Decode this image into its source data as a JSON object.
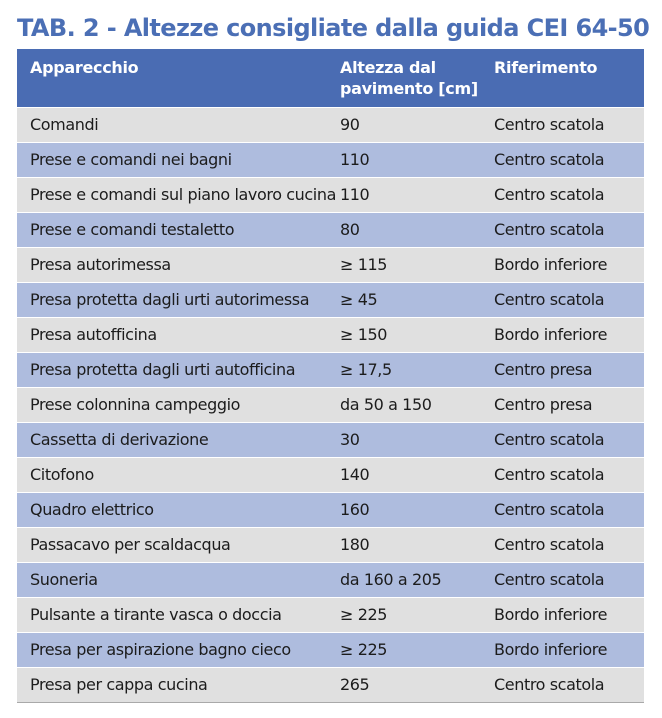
{
  "title": "TAB. 2 - Altezze consigliate dalla guida CEI 64-50",
  "columns": {
    "device": "Apparecchio",
    "height_line1": "Altezza dal",
    "height_line2": "pavimento [cm]",
    "reference": "Riferimento"
  },
  "rows": [
    {
      "device": "Comandi",
      "height": "90",
      "reference": "Centro scatola"
    },
    {
      "device": "Prese e comandi nei bagni",
      "height": "110",
      "reference": "Centro scatola"
    },
    {
      "device": "Prese e comandi sul piano lavoro cucina",
      "height": "110",
      "reference": "Centro scatola"
    },
    {
      "device": "Prese e comandi testaletto",
      "height": "80",
      "reference": "Centro scatola"
    },
    {
      "device": "Presa autorimessa",
      "height": "≥ 115",
      "reference": "Bordo inferiore"
    },
    {
      "device": "Presa protetta dagli urti autorimessa",
      "height": "≥ 45",
      "reference": "Centro scatola"
    },
    {
      "device": "Presa autofficina",
      "height": "≥ 150",
      "reference": "Bordo inferiore"
    },
    {
      "device": "Presa protetta dagli urti autofficina",
      "height": "≥ 17,5",
      "reference": "Centro presa"
    },
    {
      "device": "Prese colonnina campeggio",
      "height": "da 50 a 150",
      "reference": "Centro presa"
    },
    {
      "device": "Cassetta di derivazione",
      "height": "30",
      "reference": "Centro scatola"
    },
    {
      "device": "Citofono",
      "height": "140",
      "reference": "Centro scatola"
    },
    {
      "device": "Quadro elettrico",
      "height": "160",
      "reference": "Centro scatola"
    },
    {
      "device": "Passacavo per scaldacqua",
      "height": "180",
      "reference": "Centro scatola"
    },
    {
      "device": "Suoneria",
      "height": "da 160 a 205",
      "reference": "Centro scatola"
    },
    {
      "device": "Pulsante a tirante vasca o doccia",
      "height": "≥ 225",
      "reference": "Bordo inferiore"
    },
    {
      "device": "Presa per aspirazione bagno cieco",
      "height": "≥ 225",
      "reference": "Bordo inferiore"
    },
    {
      "device": "Presa per cappa cucina",
      "height": "265",
      "reference": "Centro scatola"
    }
  ],
  "colors": {
    "title": "#4b6fb5",
    "header_bg": "#4a6cb3",
    "row_light": "#e0e0e0",
    "row_blue": "#aebcde"
  }
}
